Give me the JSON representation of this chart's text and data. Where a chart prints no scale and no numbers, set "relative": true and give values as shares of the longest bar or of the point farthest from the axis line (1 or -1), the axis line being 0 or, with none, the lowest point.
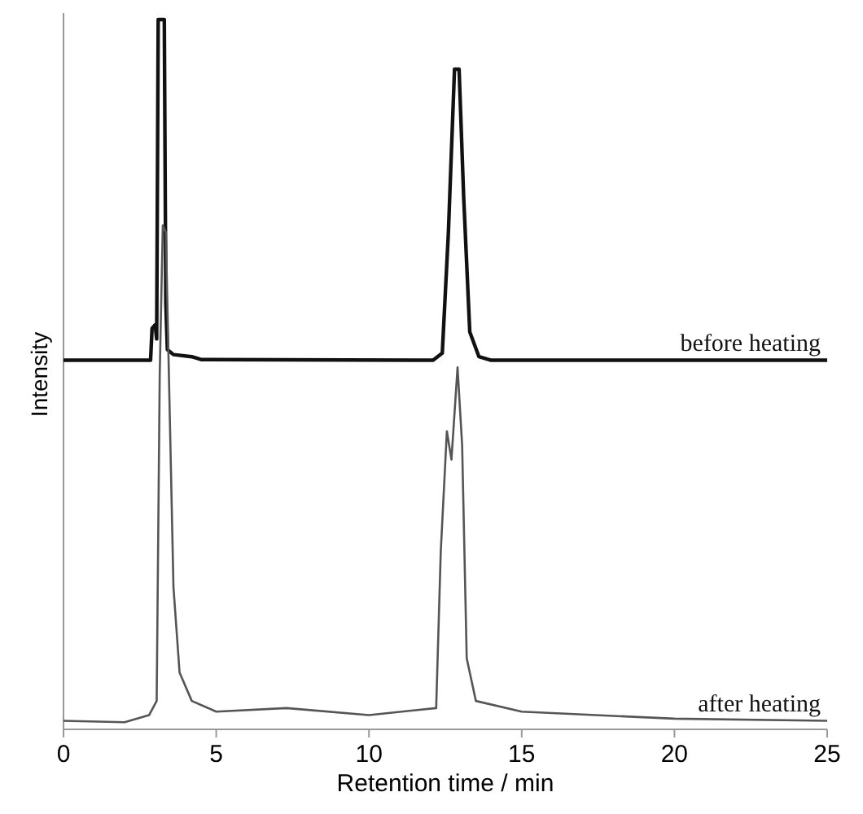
{
  "chart_data": {
    "type": "line",
    "relative": true,
    "xlabel": "Retention time / min",
    "ylabel": "Intensity",
    "xlim": [
      0,
      25
    ],
    "xticks": [
      0,
      5,
      10,
      15,
      20,
      25
    ],
    "grid": false,
    "line_style": "solid",
    "series": [
      {
        "name": "before heating",
        "color": "#111111",
        "x": [
          0,
          2.85,
          2.9,
          3.0,
          3.05,
          3.1,
          3.2,
          3.3,
          3.35,
          3.4,
          3.6,
          4.2,
          4.5,
          12.1,
          12.4,
          12.6,
          12.8,
          12.95,
          13.1,
          13.3,
          13.6,
          14,
          25
        ],
        "values": [
          0.52,
          0.52,
          0.565,
          0.57,
          0.55,
          1.0,
          1.0,
          1.0,
          0.6,
          0.535,
          0.528,
          0.525,
          0.521,
          0.52,
          0.53,
          0.7,
          0.93,
          0.93,
          0.75,
          0.56,
          0.525,
          0.52,
          0.52
        ]
      },
      {
        "name": "after heating",
        "color": "#555555",
        "x": [
          0,
          2,
          2.8,
          3.05,
          3.15,
          3.25,
          3.35,
          3.45,
          3.6,
          3.8,
          4.2,
          5,
          7.3,
          10,
          12.2,
          12.35,
          12.55,
          12.7,
          12.9,
          13.05,
          13.2,
          13.5,
          15,
          20,
          25
        ],
        "values": [
          0.012,
          0.01,
          0.02,
          0.04,
          0.5,
          0.71,
          0.7,
          0.5,
          0.2,
          0.08,
          0.04,
          0.025,
          0.03,
          0.02,
          0.03,
          0.25,
          0.42,
          0.38,
          0.51,
          0.4,
          0.1,
          0.04,
          0.025,
          0.015,
          0.012
        ]
      }
    ]
  }
}
